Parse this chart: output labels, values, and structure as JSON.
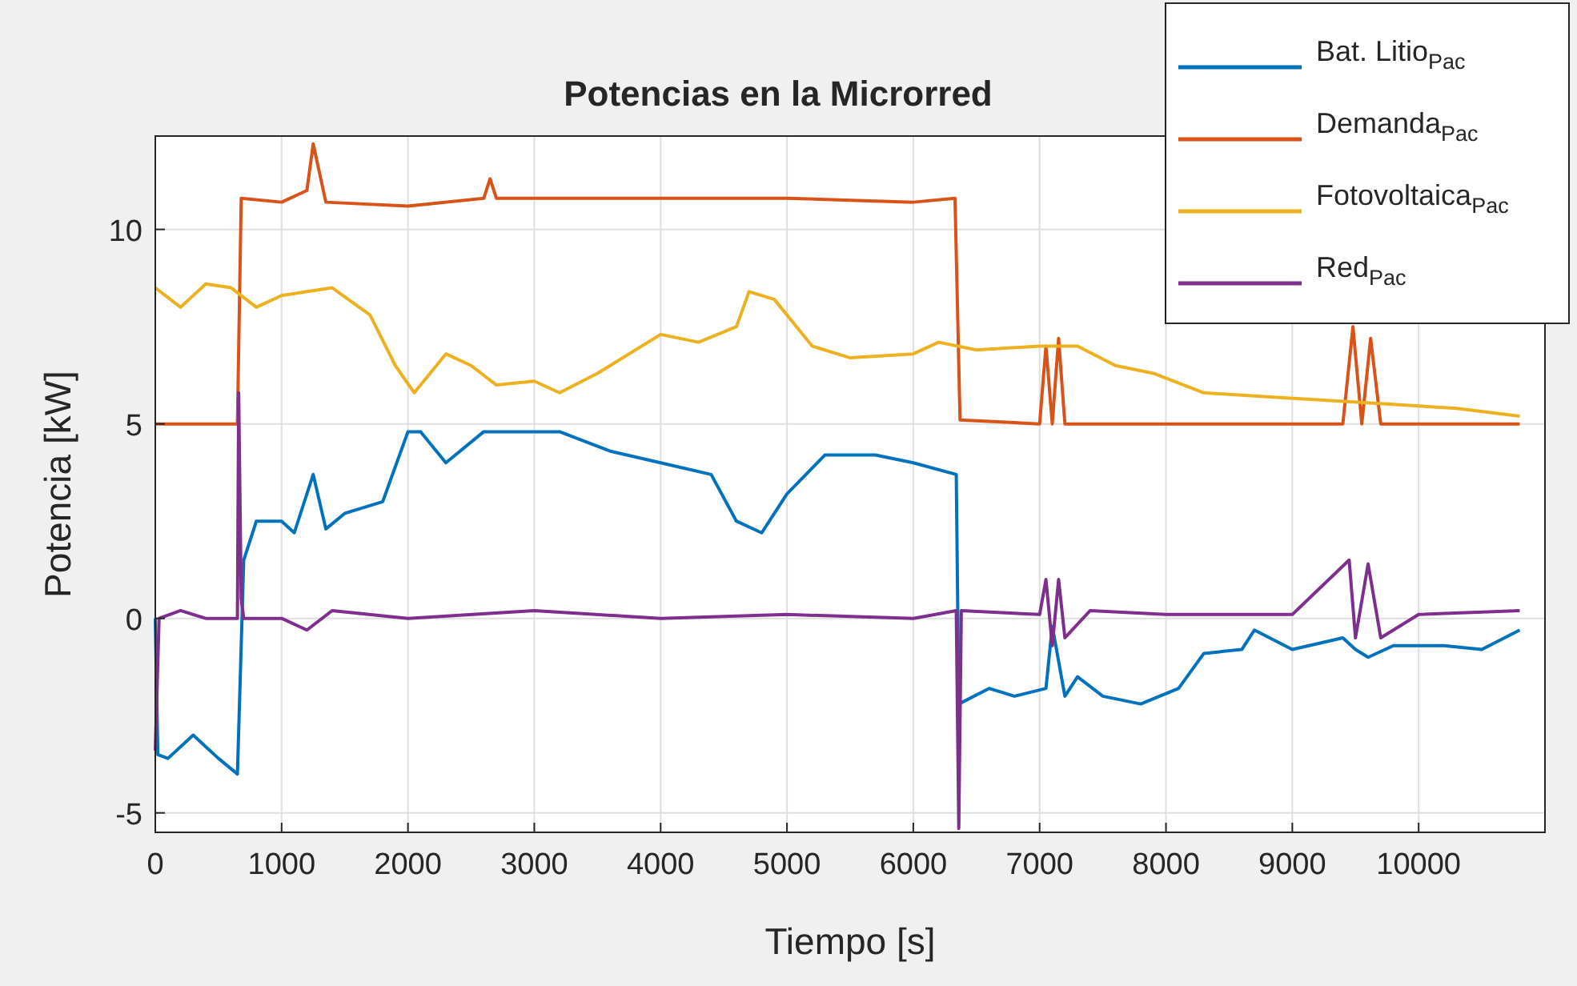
{
  "chart_data": {
    "type": "line",
    "title": "Potencias en la Microrred",
    "xlabel": "Tiempo [s]",
    "ylabel": "Potencia [kW]",
    "xlim": [
      0,
      11000
    ],
    "ylim": [
      -5.5,
      12.4
    ],
    "xticks": [
      0,
      1000,
      2000,
      3000,
      4000,
      5000,
      6000,
      7000,
      8000,
      9000,
      10000
    ],
    "yticks": [
      -5,
      0,
      5,
      10
    ],
    "grid": true,
    "legend": "top right",
    "line_style": "solid",
    "series": [
      {
        "name": "Bat. Litio$_{Pac}$",
        "color": "#0072bd",
        "x": [
          0,
          20,
          100,
          300,
          500,
          650,
          700,
          800,
          1000,
          1100,
          1250,
          1350,
          1500,
          1800,
          2000,
          2100,
          2300,
          2600,
          3000,
          3200,
          3600,
          4000,
          4400,
          4600,
          4800,
          5000,
          5300,
          5700,
          6000,
          6340,
          6360,
          6600,
          6800,
          7050,
          7100,
          7200,
          7300,
          7500,
          7800,
          8100,
          8300,
          8600,
          8700,
          9000,
          9400,
          9500,
          9600,
          9800,
          10200,
          10500,
          10800
        ],
        "values": [
          0,
          -3.5,
          -3.6,
          -3.0,
          -3.6,
          -4.0,
          1.5,
          2.5,
          2.5,
          2.2,
          3.7,
          2.3,
          2.7,
          3.0,
          4.8,
          4.8,
          4.0,
          4.8,
          4.8,
          4.8,
          4.3,
          4.0,
          3.7,
          2.5,
          2.2,
          3.2,
          4.2,
          4.2,
          4.0,
          3.7,
          -2.2,
          -1.8,
          -2.0,
          -1.8,
          -0.2,
          -2.0,
          -1.5,
          -2.0,
          -2.2,
          -1.8,
          -0.9,
          -0.8,
          -0.3,
          -0.8,
          -0.5,
          -0.8,
          -1.0,
          -0.7,
          -0.7,
          -0.8,
          -0.3
        ]
      },
      {
        "name": "Demanda$_{Pac}$",
        "color": "#d95319",
        "x": [
          0,
          600,
          650,
          680,
          1000,
          1200,
          1250,
          1350,
          2000,
          2600,
          2650,
          2700,
          3000,
          4000,
          5000,
          6000,
          6330,
          6370,
          7000,
          7050,
          7100,
          7150,
          7200,
          8000,
          9000,
          9400,
          9480,
          9550,
          9620,
          9700,
          10800
        ],
        "values": [
          5,
          5,
          5,
          10.8,
          10.7,
          11.0,
          12.2,
          10.7,
          10.6,
          10.8,
          11.3,
          10.8,
          10.8,
          10.8,
          10.8,
          10.7,
          10.8,
          5.1,
          5.0,
          7.0,
          5.0,
          7.2,
          5.0,
          5.0,
          5.0,
          5.0,
          7.5,
          5.0,
          7.2,
          5.0,
          5.0
        ]
      },
      {
        "name": "Fotovoltaica$_{Pac}$",
        "color": "#edb120",
        "x": [
          0,
          200,
          400,
          600,
          800,
          1000,
          1400,
          1700,
          1900,
          2050,
          2300,
          2500,
          2700,
          3000,
          3200,
          3500,
          4000,
          4300,
          4600,
          4700,
          4900,
          5200,
          5500,
          6000,
          6200,
          6500,
          7000,
          7300,
          7600,
          7900,
          8300,
          8800,
          9300,
          9800,
          10300,
          10800
        ],
        "values": [
          8.5,
          8.0,
          8.6,
          8.5,
          8.0,
          8.3,
          8.5,
          7.8,
          6.5,
          5.8,
          6.8,
          6.5,
          6.0,
          6.1,
          5.8,
          6.3,
          7.3,
          7.1,
          7.5,
          8.4,
          8.2,
          7.0,
          6.7,
          6.8,
          7.1,
          6.9,
          7.0,
          7.0,
          6.5,
          6.3,
          5.8,
          5.7,
          5.6,
          5.5,
          5.4,
          5.2
        ]
      },
      {
        "name": "Red$_{Pac}$",
        "color": "#7e2f8e",
        "x": [
          0,
          30,
          200,
          400,
          650,
          660,
          680,
          700,
          1000,
          1200,
          1400,
          2000,
          3000,
          4000,
          5000,
          6000,
          6340,
          6360,
          6380,
          7000,
          7050,
          7100,
          7150,
          7200,
          7400,
          8000,
          9000,
          9450,
          9500,
          9600,
          9700,
          10000,
          10800
        ],
        "values": [
          -3.4,
          0,
          0.2,
          0,
          0,
          5.8,
          0.5,
          0,
          0,
          -0.3,
          0.2,
          0,
          0.2,
          0,
          0.1,
          0,
          0.2,
          -5.4,
          0.2,
          0.1,
          1.0,
          -0.7,
          1.0,
          -0.5,
          0.2,
          0.1,
          0.1,
          1.5,
          -0.5,
          1.4,
          -0.5,
          0.1,
          0.2
        ]
      }
    ]
  }
}
